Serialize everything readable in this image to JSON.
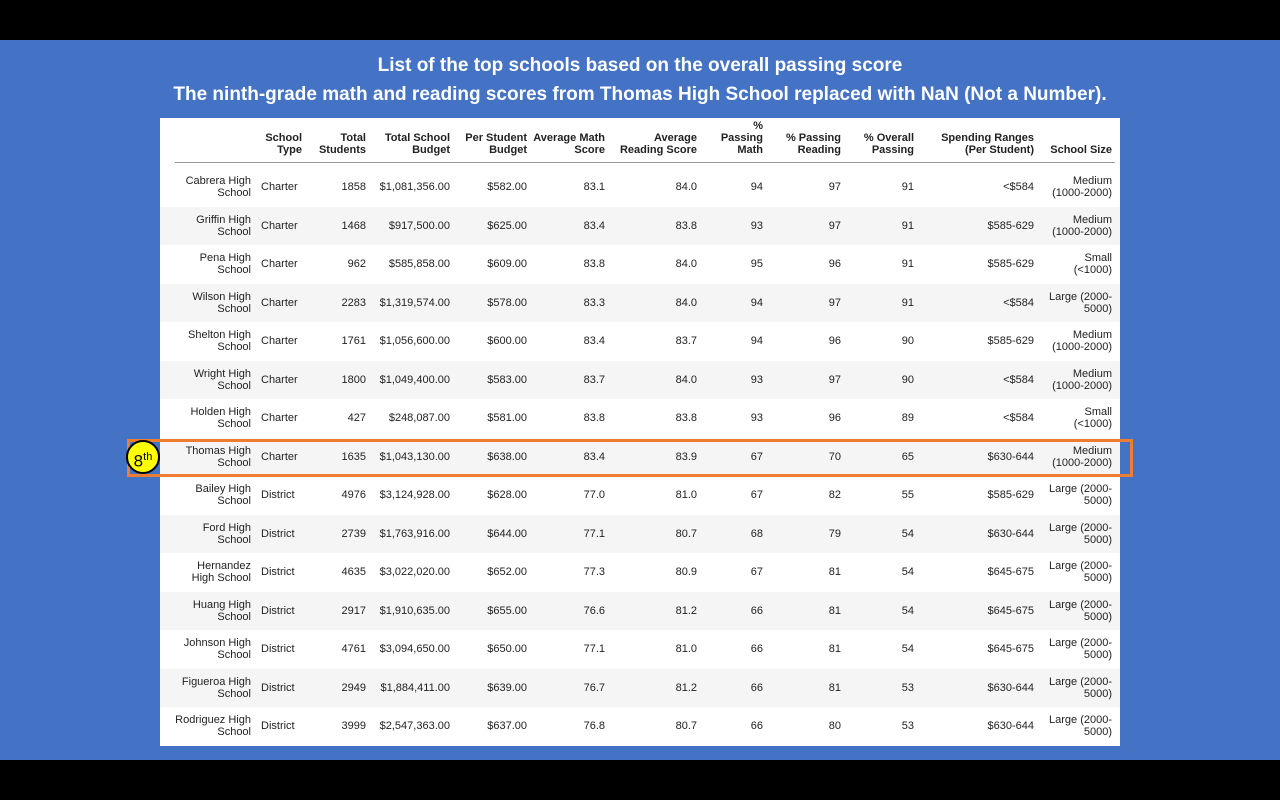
{
  "slide": {
    "title_lines": [
      "List of the top schools based on the overall passing score",
      "The ninth-grade math and reading scores from Thomas High School replaced with NaN (Not a Number)."
    ],
    "badge": {
      "number": "8",
      "suffix": "th"
    },
    "highlight_row": 7
  },
  "table": {
    "header": [
      "School Type",
      "Total Students",
      "Total School Budget",
      "Per Student Budget",
      "Average Math Score",
      "Average Reading Score",
      "% Passing Math",
      "% Passing Reading",
      "% Overall Passing",
      "Spending Ranges (Per Student)",
      "School Size"
    ],
    "rows": [
      [
        "Cabrera High School",
        "Charter",
        "1858",
        "$1,081,356.00",
        "$582.00",
        "83.1",
        "84.0",
        "94",
        "97",
        "91",
        "<$584",
        "Medium (1000-2000)"
      ],
      [
        "Griffin High School",
        "Charter",
        "1468",
        "$917,500.00",
        "$625.00",
        "83.4",
        "83.8",
        "93",
        "97",
        "91",
        "$585-629",
        "Medium (1000-2000)"
      ],
      [
        "Pena High School",
        "Charter",
        "962",
        "$585,858.00",
        "$609.00",
        "83.8",
        "84.0",
        "95",
        "96",
        "91",
        "$585-629",
        "Small (<1000)"
      ],
      [
        "Wilson High School",
        "Charter",
        "2283",
        "$1,319,574.00",
        "$578.00",
        "83.3",
        "84.0",
        "94",
        "97",
        "91",
        "<$584",
        "Large (2000-5000)"
      ],
      [
        "Shelton High School",
        "Charter",
        "1761",
        "$1,056,600.00",
        "$600.00",
        "83.4",
        "83.7",
        "94",
        "96",
        "90",
        "$585-629",
        "Medium (1000-2000)"
      ],
      [
        "Wright High School",
        "Charter",
        "1800",
        "$1,049,400.00",
        "$583.00",
        "83.7",
        "84.0",
        "93",
        "97",
        "90",
        "<$584",
        "Medium (1000-2000)"
      ],
      [
        "Holden High School",
        "Charter",
        "427",
        "$248,087.00",
        "$581.00",
        "83.8",
        "83.8",
        "93",
        "96",
        "89",
        "<$584",
        "Small (<1000)"
      ],
      [
        "Thomas High School",
        "Charter",
        "1635",
        "$1,043,130.00",
        "$638.00",
        "83.4",
        "83.9",
        "67",
        "70",
        "65",
        "$630-644",
        "Medium (1000-2000)"
      ],
      [
        "Bailey High School",
        "District",
        "4976",
        "$3,124,928.00",
        "$628.00",
        "77.0",
        "81.0",
        "67",
        "82",
        "55",
        "$585-629",
        "Large (2000-5000)"
      ],
      [
        "Ford High School",
        "District",
        "2739",
        "$1,763,916.00",
        "$644.00",
        "77.1",
        "80.7",
        "68",
        "79",
        "54",
        "$630-644",
        "Large (2000-5000)"
      ],
      [
        "Hernandez High School",
        "District",
        "4635",
        "$3,022,020.00",
        "$652.00",
        "77.3",
        "80.9",
        "67",
        "81",
        "54",
        "$645-675",
        "Large (2000-5000)"
      ],
      [
        "Huang High School",
        "District",
        "2917",
        "$1,910,635.00",
        "$655.00",
        "76.6",
        "81.2",
        "66",
        "81",
        "54",
        "$645-675",
        "Large (2000-5000)"
      ],
      [
        "Johnson High School",
        "District",
        "4761",
        "$3,094,650.00",
        "$650.00",
        "77.1",
        "81.0",
        "66",
        "81",
        "54",
        "$645-675",
        "Large (2000-5000)"
      ],
      [
        "Figueroa High School",
        "District",
        "2949",
        "$1,884,411.00",
        "$639.00",
        "76.7",
        "81.2",
        "66",
        "81",
        "53",
        "$630-644",
        "Large (2000-5000)"
      ],
      [
        "Rodriguez High School",
        "District",
        "3999",
        "$2,547,363.00",
        "$637.00",
        "76.8",
        "80.7",
        "66",
        "80",
        "53",
        "$630-644",
        "Large (2000-5000)"
      ]
    ]
  }
}
